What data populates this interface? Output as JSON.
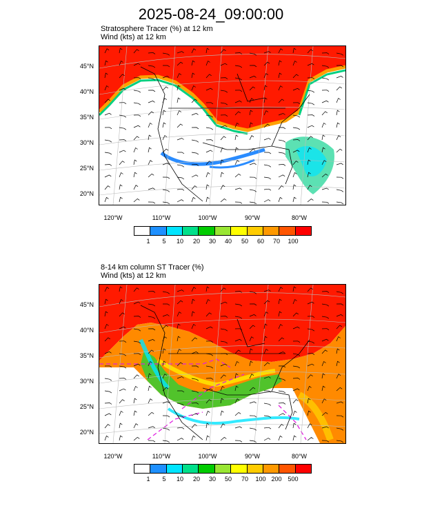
{
  "title": "2025-08-24_09:00:00",
  "panels": [
    {
      "line1": "Stratosphere Tracer   (%)     at   12 km",
      "line2": "Wind   (kts)     at   12 km",
      "lat_labels": [
        "45°N",
        "40°N",
        "35°N",
        "30°N",
        "25°N",
        "20°N"
      ],
      "lon_labels": [
        "120°W",
        "110°W",
        "100°W",
        "90°W",
        "80°W"
      ],
      "colorbar_labels": [
        "1",
        "5",
        "10",
        "20",
        "30",
        "40",
        "50",
        "60",
        "70",
        "100"
      ]
    },
    {
      "line1": "8-14 km column ST Tracer    (%)",
      "line2": "Wind   (kts)     at   12 km",
      "lat_labels": [
        "45°N",
        "40°N",
        "35°N",
        "30°N",
        "25°N",
        "20°N"
      ],
      "lon_labels": [
        "120°W",
        "110°W",
        "100°W",
        "90°W",
        "80°W"
      ],
      "colorbar_labels": [
        "1",
        "5",
        "10",
        "20",
        "30",
        "50",
        "70",
        "100",
        "200",
        "500"
      ]
    }
  ],
  "colorbar_colors": [
    "#ffffff",
    "#1e90ff",
    "#00e5ff",
    "#00e08a",
    "#00cc00",
    "#99e633",
    "#ffff00",
    "#ffcc00",
    "#ff9900",
    "#ff5500",
    "#ff0000"
  ]
}
